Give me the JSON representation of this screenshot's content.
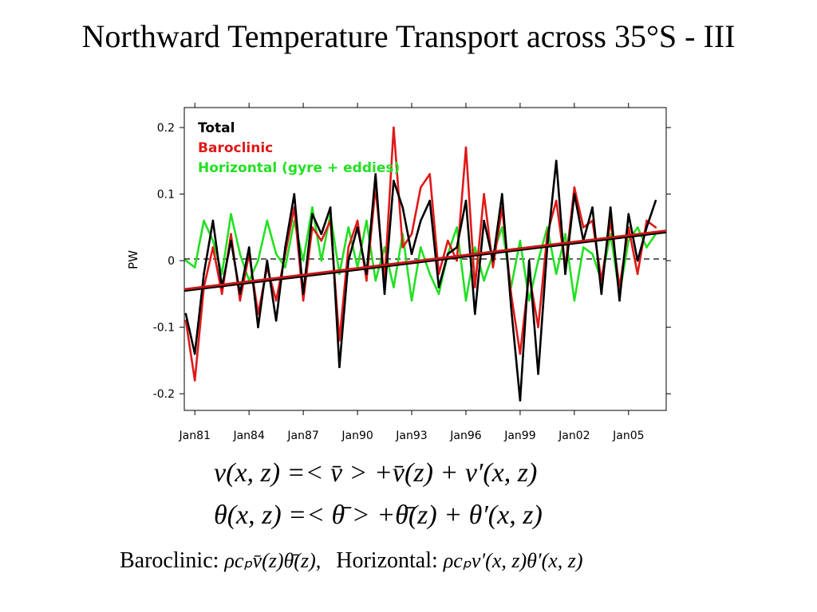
{
  "slide": {
    "title": "Northward Temperature Transport across 35°S - III"
  },
  "chart_data": {
    "type": "line",
    "title": "",
    "xlabel": "",
    "ylabel": "PW",
    "xlim": [
      "1980-06",
      "2007-02"
    ],
    "ylim": [
      -0.225,
      0.23
    ],
    "x_ticks": [
      "Jan81",
      "Jan84",
      "Jan87",
      "Jan90",
      "Jan93",
      "Jan96",
      "Jan99",
      "Jan02",
      "Jan05"
    ],
    "y_ticks": [
      "0.2",
      "0.1",
      "0",
      "-0.1",
      "-0.2"
    ],
    "y_tick_values": [
      0.2,
      0.1,
      0,
      -0.1,
      -0.2
    ],
    "zero_line": "dashed",
    "grid": false,
    "legend_position": "top-left",
    "x": [
      "1980-07",
      "1981-01",
      "1981-07",
      "1982-01",
      "1982-07",
      "1983-01",
      "1983-07",
      "1984-01",
      "1984-07",
      "1985-01",
      "1985-07",
      "1986-01",
      "1986-07",
      "1987-01",
      "1987-07",
      "1988-01",
      "1988-07",
      "1989-01",
      "1989-07",
      "1990-01",
      "1990-07",
      "1991-01",
      "1991-07",
      "1992-01",
      "1992-07",
      "1993-01",
      "1993-07",
      "1994-01",
      "1994-07",
      "1995-01",
      "1995-07",
      "1996-01",
      "1996-07",
      "1997-01",
      "1997-07",
      "1998-01",
      "1998-07",
      "1999-01",
      "1999-07",
      "2000-01",
      "2000-07",
      "2001-01",
      "2001-07",
      "2002-01",
      "2002-07",
      "2003-01",
      "2003-07",
      "2004-01",
      "2004-07",
      "2005-01",
      "2005-07",
      "2006-01",
      "2006-07"
    ],
    "series": [
      {
        "name": "Total",
        "color": "#000000",
        "values": [
          -0.08,
          -0.14,
          -0.02,
          0.06,
          -0.04,
          0.03,
          -0.05,
          0.02,
          -0.1,
          0.0,
          -0.09,
          0.02,
          0.1,
          -0.05,
          0.07,
          0.04,
          0.08,
          -0.16,
          0.0,
          0.05,
          -0.02,
          0.13,
          -0.05,
          0.12,
          0.08,
          0.01,
          0.06,
          0.09,
          -0.04,
          0.01,
          0.02,
          0.09,
          -0.08,
          0.06,
          0.0,
          0.1,
          -0.07,
          -0.21,
          0.0,
          -0.17,
          0.02,
          0.15,
          -0.02,
          0.1,
          0.03,
          0.08,
          -0.05,
          0.08,
          -0.06,
          0.07,
          0.0,
          0.05,
          0.09
        ]
      },
      {
        "name": "Baroclinic",
        "color": "#e01818",
        "values": [
          -0.09,
          -0.18,
          -0.04,
          0.02,
          -0.05,
          0.04,
          -0.06,
          0.01,
          -0.08,
          -0.01,
          -0.06,
          0.01,
          0.08,
          -0.06,
          0.05,
          0.03,
          0.06,
          -0.12,
          0.02,
          0.06,
          -0.03,
          0.11,
          -0.03,
          0.2,
          0.02,
          0.04,
          0.11,
          0.13,
          -0.02,
          0.03,
          0.0,
          0.17,
          -0.04,
          0.1,
          -0.01,
          0.08,
          -0.05,
          -0.14,
          -0.02,
          -0.1,
          0.04,
          0.09,
          -0.01,
          0.11,
          0.05,
          0.06,
          -0.03,
          0.06,
          -0.04,
          0.05,
          -0.02,
          0.06,
          0.05
        ]
      },
      {
        "name": "Horizontal (gyre + eddies)",
        "color": "#22e022",
        "values": [
          0.0,
          -0.01,
          0.06,
          0.03,
          -0.02,
          0.07,
          0.01,
          -0.03,
          0.0,
          0.06,
          0.01,
          -0.01,
          0.06,
          0.0,
          0.08,
          0.0,
          0.07,
          -0.02,
          0.05,
          -0.01,
          0.06,
          -0.03,
          0.02,
          -0.04,
          0.04,
          -0.06,
          0.02,
          -0.02,
          -0.05,
          0.01,
          0.05,
          -0.06,
          0.02,
          -0.03,
          0.01,
          0.05,
          -0.04,
          0.03,
          -0.06,
          0.0,
          0.05,
          -0.02,
          0.04,
          -0.06,
          0.02,
          0.01,
          -0.03,
          0.04,
          -0.05,
          0.03,
          0.05,
          0.02,
          0.04
        ]
      }
    ],
    "trend": {
      "color": "#c81818",
      "x": [
        "1980-06",
        "2007-02"
      ],
      "values": [
        -0.043,
        0.045
      ]
    }
  },
  "equations": {
    "line1": "v(x, z) =< v̄ > +v̄(z) + v′(x, z)",
    "line2": "θ(x, z) =< θ̄ > +θ̄(z) + θ′(x, z)"
  },
  "caption": {
    "baroclinic_label": "Baroclinic:",
    "baroclinic_formula": "ρcₚv̄(z)θ̄(z),",
    "horizontal_label": "Horizontal:",
    "horizontal_formula": "ρcₚv′(x, z)θ′(x, z)"
  }
}
